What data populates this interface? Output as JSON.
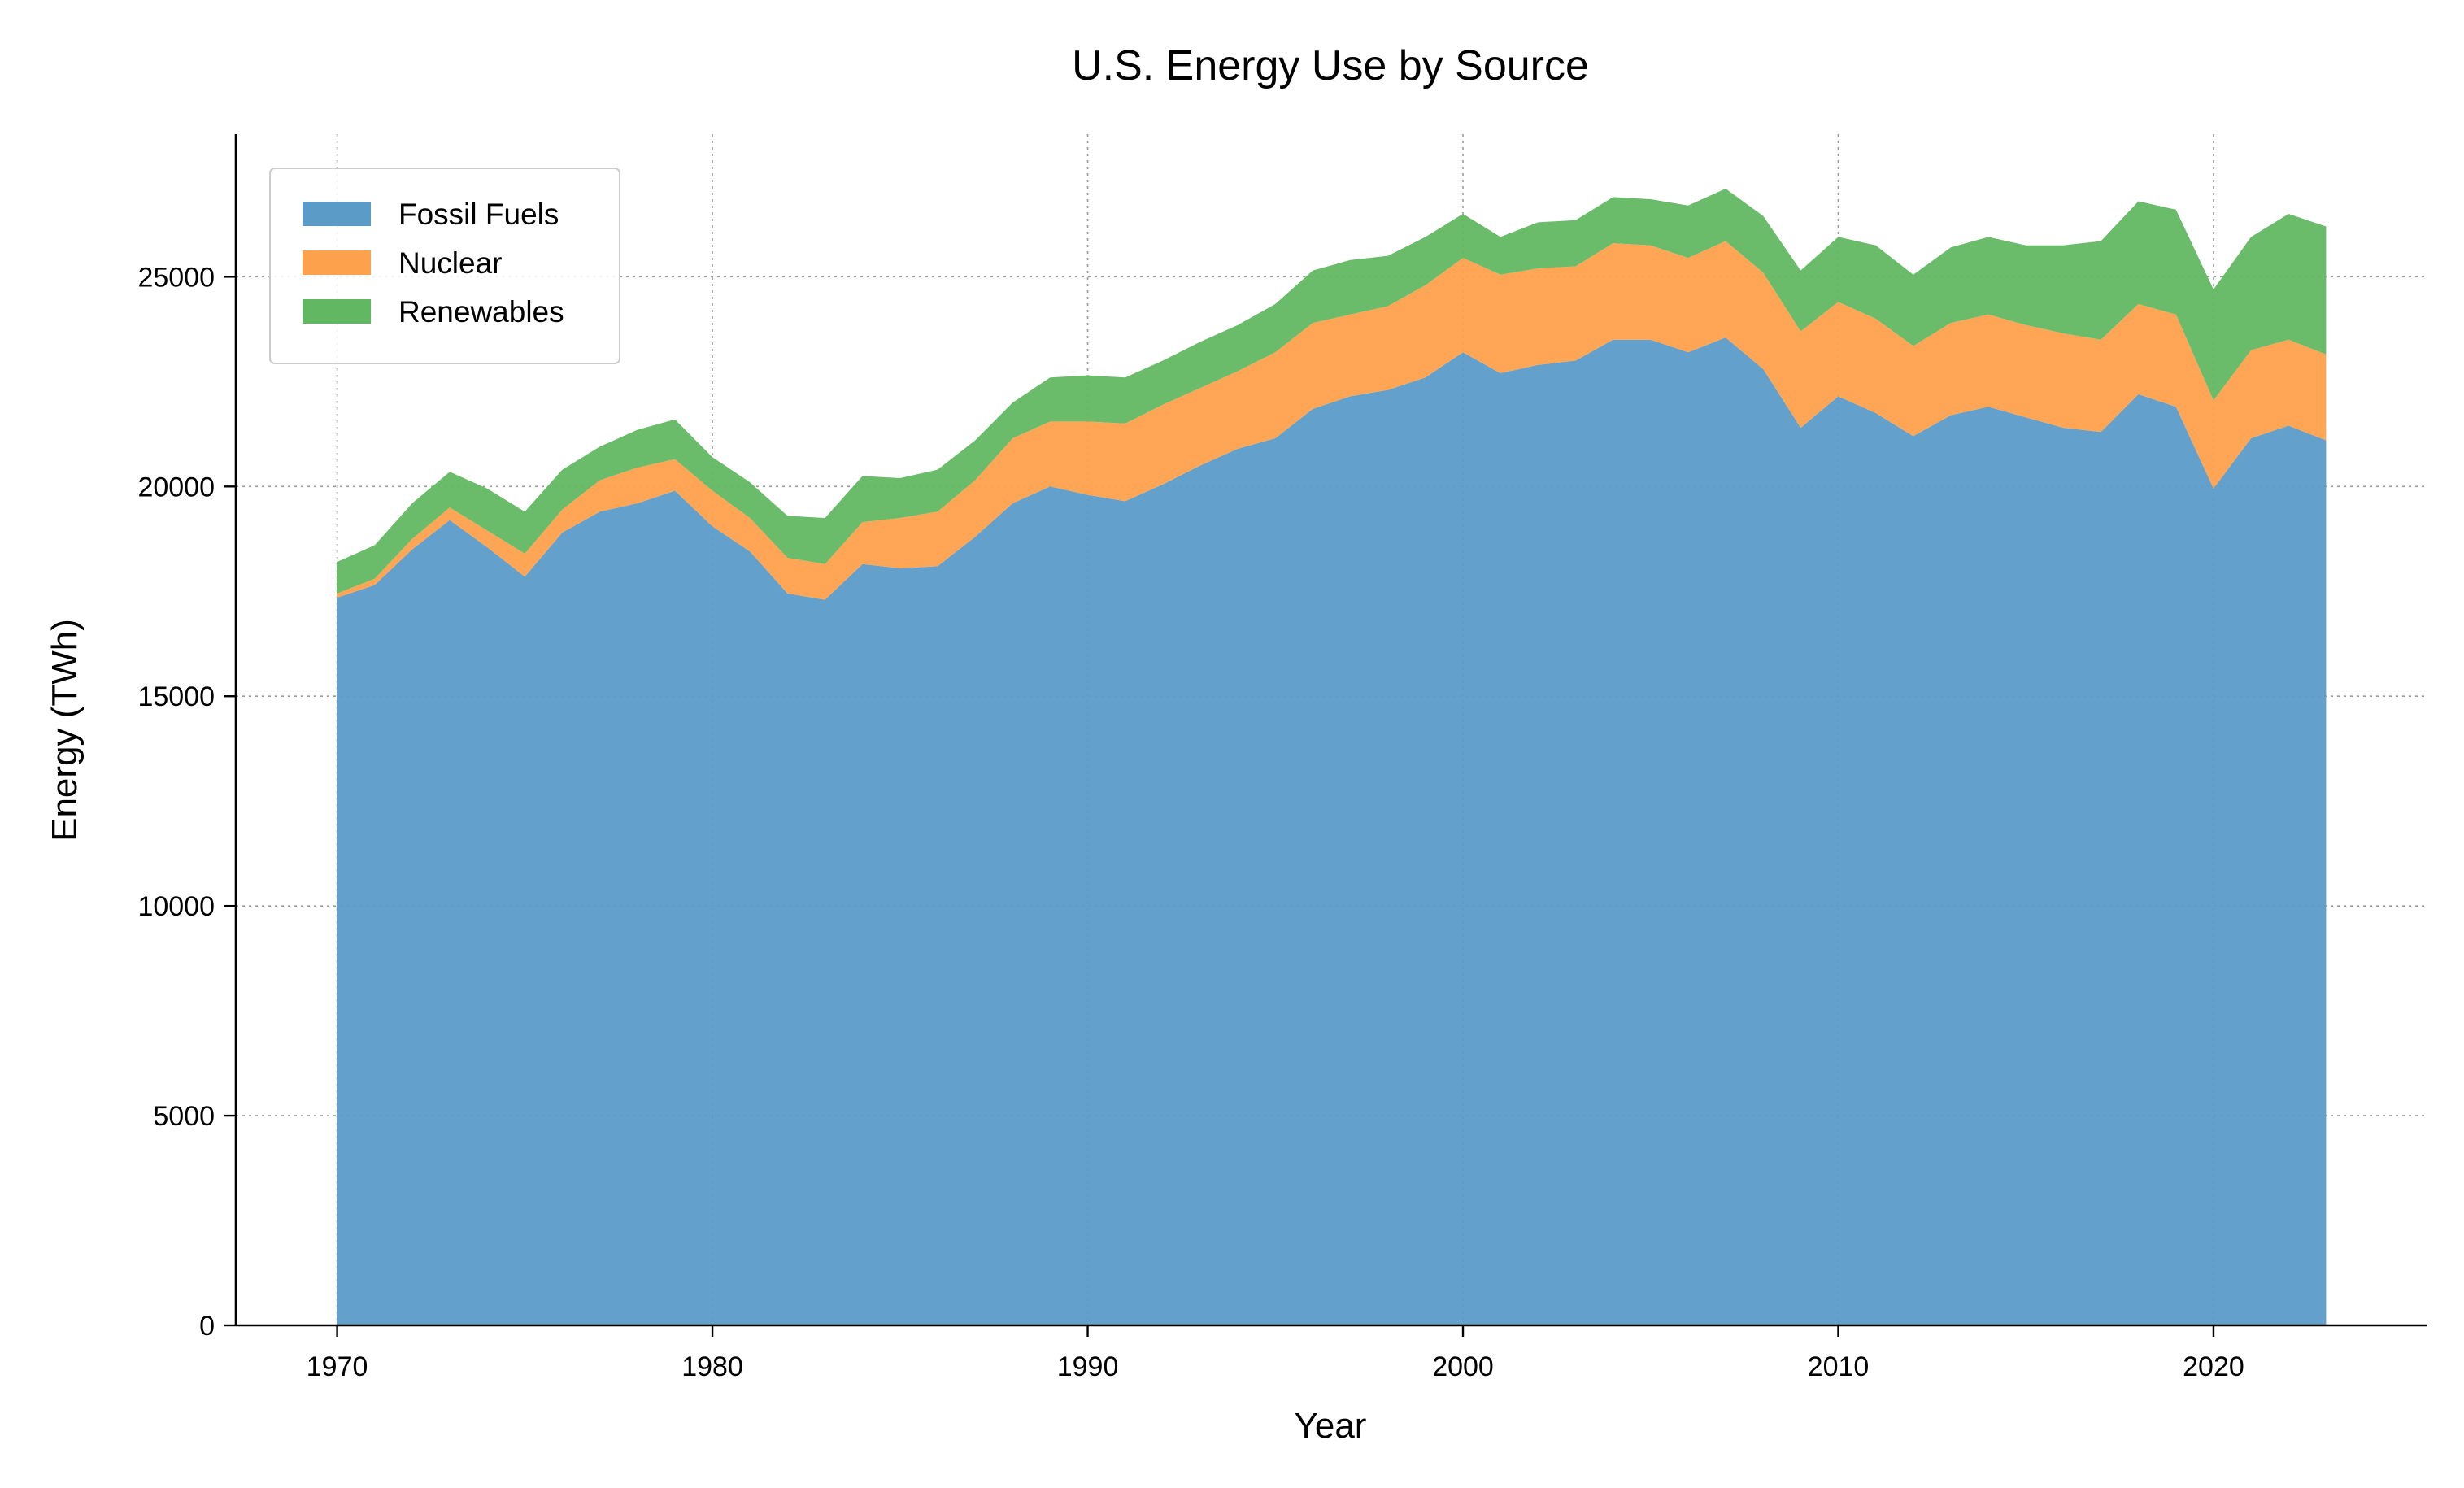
{
  "chart_data": {
    "type": "area",
    "stacked": true,
    "title": "U.S. Energy Use by Source",
    "xlabel": "Year",
    "ylabel": "Energy (TWh)",
    "xlim": [
      1967.3,
      2025.7
    ],
    "ylim": [
      0,
      28400
    ],
    "x_ticks": [
      1970,
      1980,
      1990,
      2000,
      2010,
      2020
    ],
    "y_ticks": [
      0,
      5000,
      10000,
      15000,
      20000,
      25000
    ],
    "grid": true,
    "legend_position": "top-left",
    "x": [
      1970,
      1971,
      1972,
      1973,
      1974,
      1975,
      1976,
      1977,
      1978,
      1979,
      1980,
      1981,
      1982,
      1983,
      1984,
      1985,
      1986,
      1987,
      1988,
      1989,
      1990,
      1991,
      1992,
      1993,
      1994,
      1995,
      1996,
      1997,
      1998,
      1999,
      2000,
      2001,
      2002,
      2003,
      2004,
      2005,
      2006,
      2007,
      2008,
      2009,
      2010,
      2011,
      2012,
      2013,
      2014,
      2015,
      2016,
      2017,
      2018,
      2019,
      2020,
      2021,
      2022,
      2023
    ],
    "series": [
      {
        "name": "Fossil Fuels",
        "color": "#5b9bc8",
        "values": [
          17350,
          17650,
          18500,
          19200,
          18550,
          17850,
          18900,
          19400,
          19600,
          19900,
          19050,
          18450,
          17450,
          17300,
          18150,
          18050,
          18100,
          18800,
          19600,
          20000,
          19800,
          19650,
          20050,
          20500,
          20900,
          21150,
          21850,
          22150,
          22300,
          22600,
          23200,
          22700,
          22900,
          23000,
          23500,
          23500,
          23200,
          23550,
          22800,
          21400,
          22150,
          21750,
          21200,
          21700,
          21900,
          21650,
          21400,
          21300,
          22200,
          21900,
          19950,
          21150,
          21450,
          21100
        ]
      },
      {
        "name": "Nuclear",
        "color": "#fea14c",
        "values": [
          100,
          150,
          250,
          300,
          400,
          550,
          550,
          750,
          850,
          750,
          850,
          800,
          850,
          850,
          1000,
          1200,
          1300,
          1350,
          1550,
          1550,
          1750,
          1850,
          1900,
          1850,
          1850,
          2050,
          2050,
          1950,
          2000,
          2200,
          2250,
          2350,
          2300,
          2250,
          2300,
          2250,
          2250,
          2300,
          2300,
          2300,
          2250,
          2250,
          2150,
          2200,
          2200,
          2200,
          2250,
          2200,
          2150,
          2200,
          2100,
          2100,
          2050,
          2050
        ]
      },
      {
        "name": "Renewables",
        "color": "#62b862",
        "values": [
          750,
          800,
          850,
          850,
          1000,
          1000,
          950,
          800,
          900,
          950,
          800,
          850,
          1000,
          1100,
          1100,
          950,
          1000,
          950,
          850,
          1050,
          1100,
          1100,
          1050,
          1100,
          1100,
          1150,
          1250,
          1300,
          1200,
          1150,
          1050,
          900,
          1100,
          1100,
          1100,
          1100,
          1250,
          1250,
          1350,
          1450,
          1550,
          1750,
          1700,
          1800,
          1850,
          1900,
          2100,
          2350,
          2450,
          2500,
          2650,
          2700,
          3000,
          3050
        ]
      }
    ]
  }
}
